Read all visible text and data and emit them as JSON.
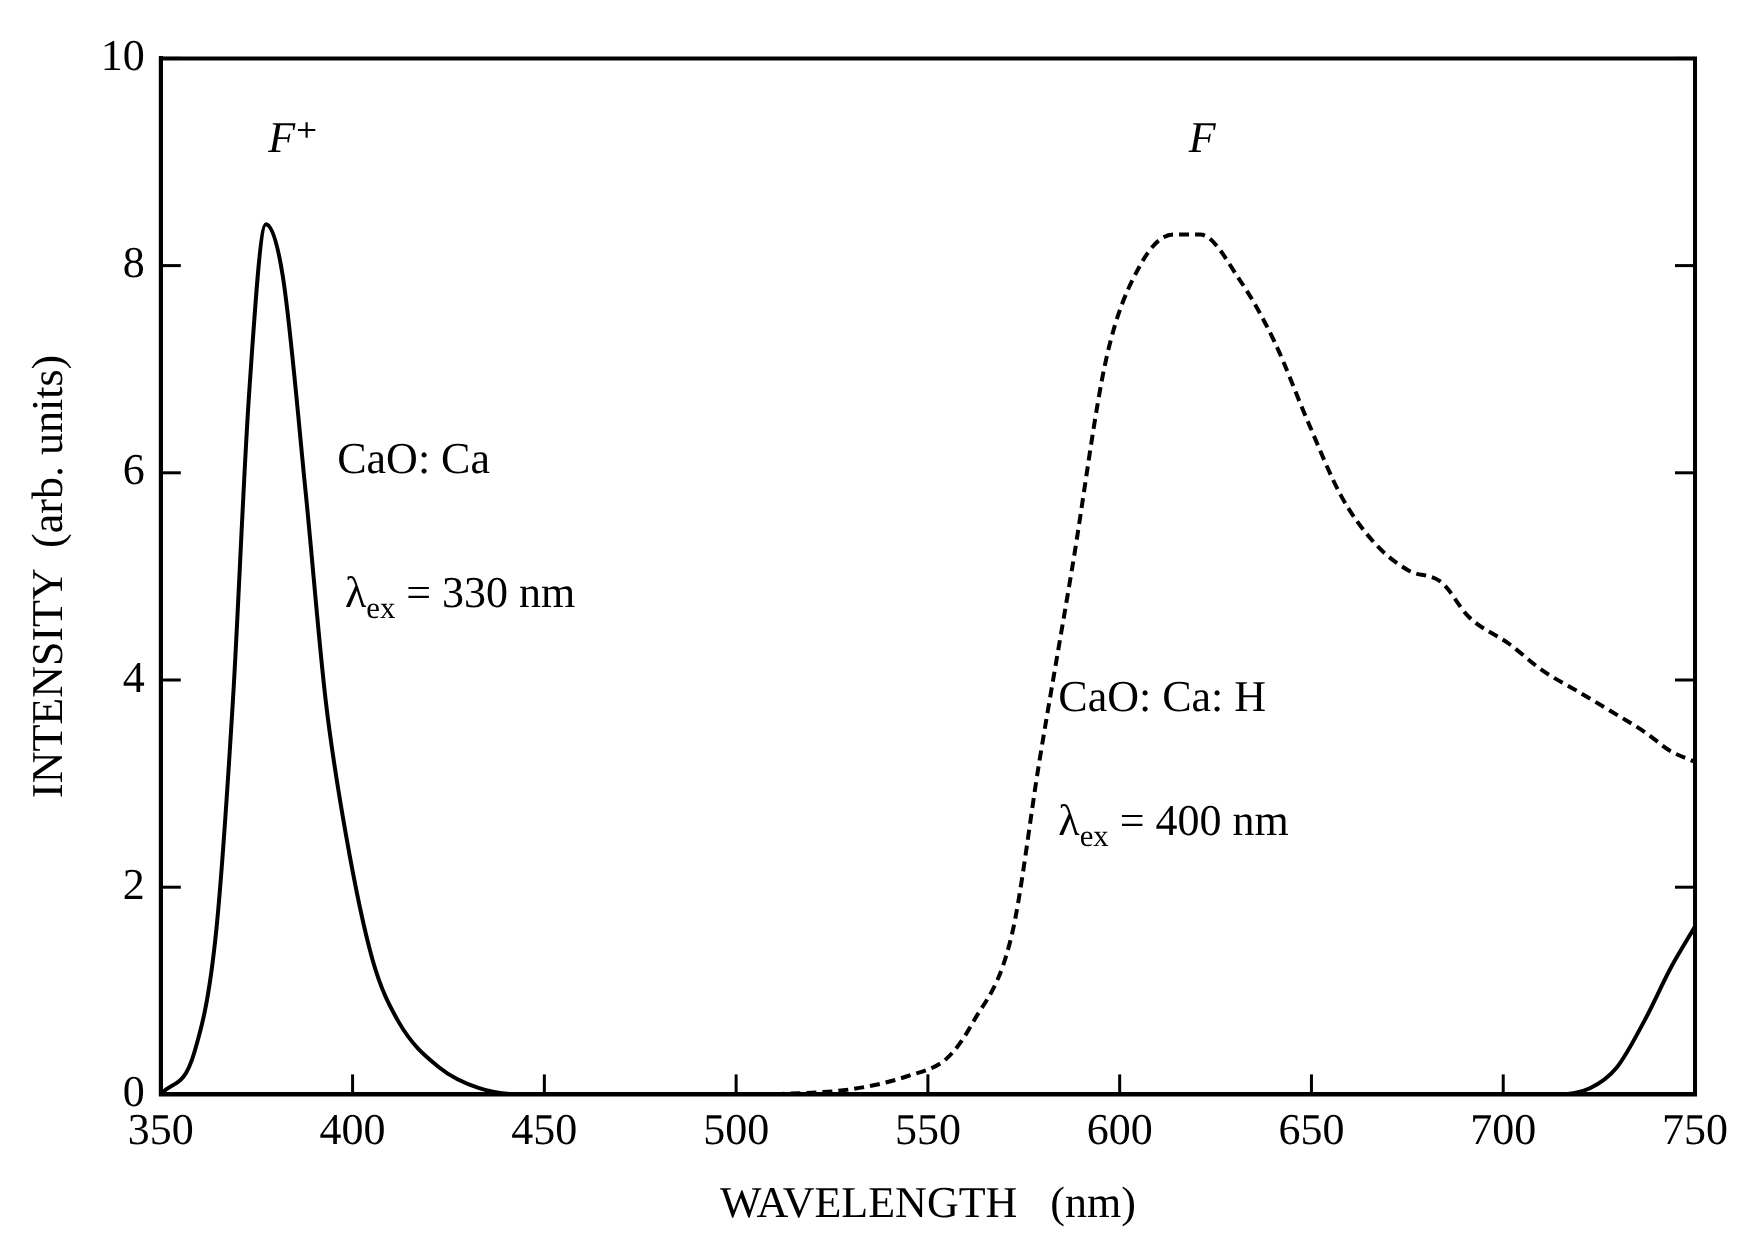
{
  "chart_data": {
    "type": "line",
    "xlabel": "WAVELENGTH   (nm)",
    "ylabel": "INTENSITY  (arb. units)",
    "xlim": [
      350,
      750
    ],
    "xticks": [
      350,
      400,
      450,
      500,
      550,
      600,
      650,
      700,
      750
    ],
    "ylim": [
      0,
      10
    ],
    "yticks": [
      0,
      2,
      4,
      6,
      8,
      10
    ],
    "marker": "none",
    "series": [
      {
        "color": "#000000",
        "line_style": "solid",
        "x": [
          350,
          358.7,
          364.4,
          368.8,
          373,
          377.4,
          381.8,
          387.8,
          393,
          398.3,
          405.2,
          412,
          422.6,
          433,
          443.4,
          460
        ],
        "values": [
          0,
          0.4,
          1.56,
          3.8,
          6.75,
          8.4,
          7.9,
          5.8,
          3.8,
          2.5,
          1.3,
          0.7,
          0.26,
          0.06,
          0,
          0
        ]
      },
      {
        "color": "#000000",
        "line_style": "dashed",
        "x": [
          510,
          530,
          545,
          555,
          561.5,
          572,
          579,
          587.7,
          596.5,
          605.3,
          614,
          621,
          631.5,
          640.3,
          649,
          657.7,
          666.5,
          675.2,
          684,
          691,
          701.5,
          710.3,
          719,
          728,
          736.8,
          743.8,
          750
        ],
        "values": [
          0,
          0.05,
          0.18,
          0.35,
          0.68,
          1.56,
          3.2,
          5.1,
          7.1,
          8.0,
          8.3,
          8.3,
          7.85,
          7.27,
          6.5,
          5.78,
          5.32,
          5.06,
          4.94,
          4.61,
          4.35,
          4.09,
          3.9,
          3.7,
          3.5,
          3.31,
          3.21
        ]
      },
      {
        "color": "#000000",
        "line_style": "solid",
        "x": [
          700,
          713.8,
          722.6,
          729.6,
          736.8,
          743.8,
          750
        ],
        "values": [
          0,
          0,
          0.06,
          0.26,
          0.71,
          1.23,
          1.62
        ]
      }
    ],
    "annotations": [
      "F⁺",
      "F",
      "CaO: Ca",
      "λ$_{ex}$ = 330 nm",
      "CaO: Ca: H",
      "λ$_{ex}$ = 400 nm"
    ]
  }
}
